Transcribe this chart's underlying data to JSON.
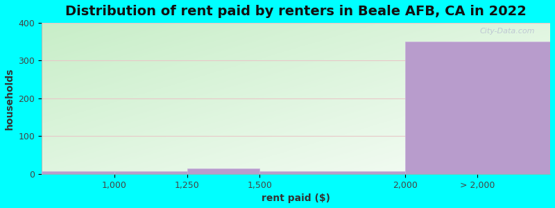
{
  "title": "Distribution of rent paid by renters in Beale AFB, CA in 2022",
  "xlabel": "rent paid ($)",
  "ylabel": "households",
  "background_color": "#00FFFF",
  "bar_color": "#b89ccc",
  "bar_edge_color": "#c8b0dc",
  "bar_heights": [
    7,
    7,
    15,
    7,
    350
  ],
  "bar_left_edges": [
    750,
    1000,
    1250,
    1500,
    2000
  ],
  "bar_right_edges": [
    1000,
    1250,
    1500,
    2000,
    2500
  ],
  "xlim": [
    750,
    2500
  ],
  "ylim": [
    0,
    400
  ],
  "yticks": [
    0,
    100,
    200,
    300,
    400
  ],
  "xtick_positions": [
    1000,
    1250,
    1500,
    2000,
    2250
  ],
  "xtick_labels": [
    "1,000",
    "1,250",
    "1,500",
    "2,000",
    "> 2,000"
  ],
  "grid_color": "#e8c8c8",
  "title_fontsize": 14,
  "axis_label_fontsize": 10,
  "tick_fontsize": 9,
  "watermark_text": "City-Data.com",
  "grad_color_left": "#c8eec8",
  "grad_color_right": "#f5fbf8"
}
